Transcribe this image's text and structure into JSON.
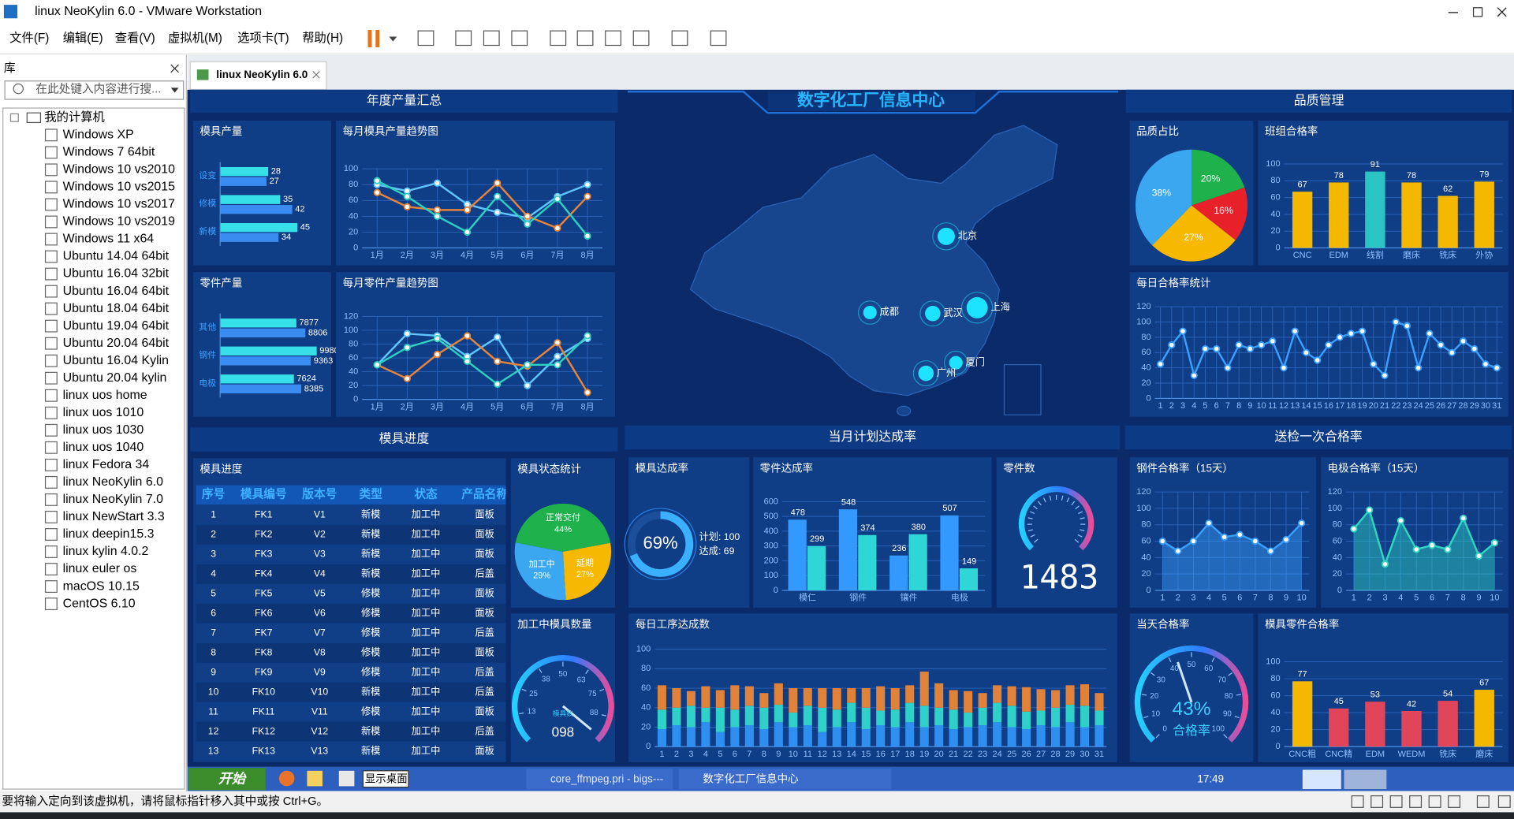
{
  "window": {
    "title": "linux NeoKylin 6.0 - VMware Workstation",
    "menu": [
      "文件(F)",
      "编辑(E)",
      "查看(V)",
      "虚拟机(M)",
      "选项卡(T)",
      "帮助(H)"
    ]
  },
  "library": {
    "title": "库",
    "search": "在此处键入内容进行搜...",
    "root": "我的计算机",
    "items": [
      "Windows XP",
      "Windows 7 64bit",
      "Windows 10 vs2010",
      "Windows 10 vs2015",
      "Windows 10 vs2017",
      "Windows 10 vs2019",
      "Windows 11 x64",
      "Ubuntu 14.04 64bit",
      "Ubuntu 16.04 32bit",
      "Ubuntu 16.04 64bit",
      "Ubuntu 18.04 64bit",
      "Ubuntu 19.04 64bit",
      "Ubuntu 20.04 64bit",
      "Ubuntu 16.04 Kylin",
      "Ubuntu 20.04 kylin",
      "linux uos home",
      "linux uos 1010",
      "linux uos 1030",
      "linux uos 1040",
      "linux Fedora 34",
      "linux NeoKylin 6.0",
      "linux NeoKylin 7.0",
      "linux NewStart 3.3",
      "linux deepin15.3",
      "linux kylin 4.0.2",
      "linux euler os",
      "macOS 10.15",
      "CentOS 6.10"
    ]
  },
  "tab": "linux NeoKylin 6.0",
  "dashboard": {
    "title": "数字化工厂信息中心",
    "sections": [
      "年度产量汇总",
      "品质管理",
      "模具进度",
      "当月计划达成率",
      "送检一次合格率"
    ],
    "map": {
      "cities": [
        "北京",
        "成都",
        "武汉",
        "上海",
        "厦门",
        "广州"
      ]
    },
    "table": {
      "title": "模具进度",
      "columns": [
        "序号",
        "模具编号",
        "版本号",
        "类型",
        "状态",
        "产品名称"
      ],
      "rows": [
        [
          "1",
          "FK1",
          "V1",
          "新模",
          "加工中",
          "面板"
        ],
        [
          "2",
          "FK2",
          "V2",
          "新模",
          "加工中",
          "面板"
        ],
        [
          "3",
          "FK3",
          "V3",
          "新模",
          "加工中",
          "面板"
        ],
        [
          "4",
          "FK4",
          "V4",
          "新模",
          "加工中",
          "后盖"
        ],
        [
          "5",
          "FK5",
          "V5",
          "修模",
          "加工中",
          "面板"
        ],
        [
          "6",
          "FK6",
          "V6",
          "修模",
          "加工中",
          "面板"
        ],
        [
          "7",
          "FK7",
          "V7",
          "修模",
          "加工中",
          "后盖"
        ],
        [
          "8",
          "FK8",
          "V8",
          "修模",
          "加工中",
          "面板"
        ],
        [
          "9",
          "FK9",
          "V9",
          "修模",
          "加工中",
          "后盖"
        ],
        [
          "10",
          "FK10",
          "V10",
          "新模",
          "加工中",
          "后盖"
        ],
        [
          "11",
          "FK11",
          "V11",
          "修模",
          "加工中",
          "面板"
        ],
        [
          "12",
          "FK12",
          "V12",
          "新模",
          "加工中",
          "后盖"
        ],
        [
          "13",
          "FK13",
          "V13",
          "新模",
          "加工中",
          "面板"
        ]
      ]
    }
  },
  "chart_data": [
    {
      "type": "bar",
      "orientation": "horizontal",
      "title": "模具产量",
      "categories": [
        "设变",
        "修模",
        "新模"
      ],
      "data_labels": true,
      "series": [
        {
          "color": "#37e0e8",
          "values": [
            28,
            35,
            45
          ]
        },
        {
          "color": "#3a8cf0",
          "values": [
            27,
            42,
            34
          ]
        }
      ]
    },
    {
      "type": "line",
      "title": "每月模具产量趋势图",
      "categories": [
        "1月",
        "2月",
        "3月",
        "4月",
        "5月",
        "6月",
        "7月",
        "8月"
      ],
      "ylim": [
        0,
        100
      ],
      "yticks": [
        0,
        20,
        40,
        60,
        80,
        100
      ],
      "grid": true,
      "series": [
        {
          "color": "#5fc6ff",
          "values": [
            80,
            72,
            82,
            55,
            45,
            38,
            65,
            80
          ]
        },
        {
          "color": "#e8843a",
          "values": [
            70,
            52,
            48,
            48,
            82,
            40,
            25,
            65
          ]
        },
        {
          "color": "#2fd0c0",
          "values": [
            85,
            65,
            40,
            20,
            65,
            30,
            62,
            15
          ]
        }
      ]
    },
    {
      "type": "bar",
      "orientation": "horizontal",
      "title": "零件产量",
      "categories": [
        "其他",
        "钢件",
        "电极"
      ],
      "data_labels": true,
      "series": [
        {
          "color": "#37e0e8",
          "values": [
            7877,
            9980,
            7624
          ]
        },
        {
          "color": "#3a8cf0",
          "values": [
            8806,
            9363,
            8385
          ]
        }
      ]
    },
    {
      "type": "line",
      "title": "每月零件产量趋势图",
      "categories": [
        "1月",
        "2月",
        "3月",
        "4月",
        "5月",
        "6月",
        "7月",
        "8月"
      ],
      "ylim": [
        0,
        120
      ],
      "yticks": [
        0,
        20,
        40,
        60,
        80,
        100,
        120
      ],
      "grid": true,
      "series": [
        {
          "color": "#5fc6ff",
          "values": [
            50,
            95,
            92,
            62,
            90,
            20,
            62,
            88
          ]
        },
        {
          "color": "#e8843a",
          "values": [
            50,
            30,
            65,
            92,
            55,
            48,
            82,
            10
          ]
        },
        {
          "color": "#2fd0c0",
          "values": [
            50,
            75,
            88,
            55,
            22,
            50,
            50,
            92
          ]
        }
      ]
    },
    {
      "type": "pie",
      "title": "品质占比",
      "values": [
        20,
        16,
        27,
        38
      ],
      "value_labels": [
        "20%",
        "16%",
        "27%",
        "38%"
      ],
      "colors": [
        "#1fb14c",
        "#e8202a",
        "#f6b800",
        "#3aa7f0"
      ]
    },
    {
      "type": "bar",
      "title": "班组合格率",
      "categories": [
        "CNC",
        "EDM",
        "线割",
        "磨床",
        "铣床",
        "外协"
      ],
      "values": [
        67,
        78,
        91,
        78,
        62,
        79
      ],
      "colors": [
        "#f5b800",
        "#f5b800",
        "#2bc4c4",
        "#f5b800",
        "#f5b800",
        "#f5b800"
      ],
      "ylim": [
        0,
        100
      ],
      "yticks": [
        0,
        20,
        40,
        60,
        80,
        100
      ],
      "grid": true,
      "data_labels": true
    },
    {
      "type": "line",
      "title": "每日合格率统计",
      "categories": [
        "1",
        "2",
        "3",
        "4",
        "5",
        "6",
        "7",
        "8",
        "9",
        "10",
        "11",
        "12",
        "13",
        "14",
        "15",
        "16",
        "17",
        "18",
        "19",
        "20",
        "21",
        "22",
        "23",
        "24",
        "25",
        "26",
        "27",
        "28",
        "29",
        "30",
        "31"
      ],
      "ylim": [
        0,
        120
      ],
      "yticks": [
        0,
        20,
        40,
        60,
        80,
        100,
        120
      ],
      "grid": true,
      "series": [
        {
          "color": "#3aa0ff",
          "values": [
            45,
            70,
            88,
            30,
            65,
            65,
            40,
            70,
            65,
            70,
            75,
            40,
            88,
            60,
            50,
            70,
            80,
            85,
            88,
            45,
            30,
            100,
            95,
            40,
            85,
            70,
            60,
            75,
            65,
            45,
            40
          ]
        }
      ]
    },
    {
      "type": "pie",
      "title": "模具状态统计",
      "categories": [
        "正常交付",
        "延期",
        "加工中"
      ],
      "values": [
        44,
        27,
        29
      ],
      "value_labels": [
        "44%",
        "27%",
        "29%"
      ],
      "colors": [
        "#1fb14c",
        "#f6b800",
        "#3aa7f0"
      ]
    },
    {
      "type": "gauge",
      "title": "加工中模具数量",
      "ylim": [
        0,
        100
      ],
      "yticks": [
        13,
        25,
        38,
        50,
        63,
        75,
        88
      ],
      "value": 98,
      "value_label": "098",
      "label": "模具数"
    },
    {
      "type": "donut",
      "title": "模具达成率",
      "ylim": [
        0,
        100
      ],
      "value": 69,
      "value_label": "69%",
      "notes": [
        "计划: 100",
        "达成: 69"
      ]
    },
    {
      "type": "bar",
      "title": "零件达成率",
      "categories": [
        "模仁",
        "钢件",
        "镶件",
        "电极"
      ],
      "ylim": [
        0,
        600
      ],
      "yticks": [
        0,
        100,
        200,
        300,
        400,
        500,
        600
      ],
      "grid": true,
      "data_labels": true,
      "series": [
        {
          "color": "#3399ff",
          "values": [
            478,
            548,
            236,
            507
          ]
        },
        {
          "color": "#2fd6d6",
          "values": [
            299,
            374,
            380,
            149
          ]
        }
      ]
    },
    {
      "type": "gauge",
      "title": "零件数",
      "value": 1483
    },
    {
      "type": "bar",
      "stacked": true,
      "title": "每日工序达成数",
      "categories": [
        "1",
        "2",
        "3",
        "4",
        "5",
        "6",
        "7",
        "8",
        "9",
        "10",
        "11",
        "12",
        "13",
        "14",
        "15",
        "16",
        "17",
        "18",
        "19",
        "20",
        "21",
        "22",
        "23",
        "24",
        "25",
        "26",
        "27",
        "28",
        "29",
        "30",
        "31"
      ],
      "ylim": [
        0,
        100
      ],
      "yticks": [
        0,
        20,
        40,
        60,
        80,
        100
      ],
      "grid": true,
      "series": [
        {
          "color": "#2f8ff0",
          "values": [
            18,
            22,
            20,
            25,
            15,
            20,
            22,
            18,
            25,
            20,
            22,
            15,
            20,
            25,
            18,
            22,
            20,
            25,
            20,
            22,
            18,
            20,
            22,
            25,
            20,
            18,
            22,
            20,
            25,
            20,
            22
          ]
        },
        {
          "color": "#2fd0c8",
          "values": [
            20,
            18,
            22,
            15,
            25,
            18,
            20,
            22,
            18,
            15,
            20,
            25,
            18,
            20,
            22,
            15,
            18,
            20,
            22,
            18,
            20,
            15,
            18,
            20,
            22,
            18,
            15,
            20,
            18,
            22,
            15
          ]
        },
        {
          "color": "#e0823a",
          "values": [
            25,
            20,
            15,
            22,
            18,
            25,
            20,
            15,
            22,
            25,
            18,
            20,
            22,
            15,
            20,
            25,
            22,
            18,
            35,
            25,
            20,
            22,
            15,
            18,
            20,
            25,
            22,
            18,
            20,
            22,
            18
          ]
        }
      ]
    },
    {
      "type": "area",
      "title": "钢件合格率（15天）",
      "categories": [
        "1",
        "2",
        "3",
        "4",
        "5",
        "6",
        "7",
        "8",
        "9",
        "10"
      ],
      "ylim": [
        0,
        120
      ],
      "yticks": [
        0,
        20,
        40,
        60,
        80,
        100,
        120
      ],
      "grid": true,
      "series": [
        {
          "color": "#3aa0ff",
          "values": [
            60,
            48,
            60,
            82,
            65,
            68,
            60,
            48,
            62,
            82
          ]
        }
      ]
    },
    {
      "type": "area",
      "title": "电极合格率（15天）",
      "categories": [
        "1",
        "2",
        "3",
        "4",
        "5",
        "6",
        "7",
        "8",
        "9",
        "10"
      ],
      "ylim": [
        0,
        120
      ],
      "yticks": [
        0,
        20,
        40,
        60,
        80,
        100,
        120
      ],
      "grid": true,
      "series": [
        {
          "color": "#2fd6c0",
          "values": [
            75,
            98,
            32,
            85,
            50,
            55,
            50,
            88,
            42,
            58
          ]
        }
      ]
    },
    {
      "type": "gauge",
      "title": "当天合格率",
      "ylim": [
        0,
        100
      ],
      "yticks": [
        0,
        10,
        20,
        30,
        40,
        50,
        60,
        70,
        80,
        90,
        100
      ],
      "value": 43,
      "value_label": "43%",
      "label": "合格率"
    },
    {
      "type": "bar",
      "title": "模具零件合格率",
      "categories": [
        "CNC粗",
        "CNC精",
        "EDM",
        "WEDM",
        "铣床",
        "磨床"
      ],
      "values": [
        77,
        45,
        53,
        42,
        54,
        67
      ],
      "colors": [
        "#f5b800",
        "#e0455a",
        "#e0455a",
        "#e0455a",
        "#e0455a",
        "#f5b800"
      ],
      "ylim": [
        0,
        100
      ],
      "yticks": [
        0,
        20,
        40,
        60,
        80,
        100
      ],
      "grid": true,
      "data_labels": true
    }
  ],
  "taskbar": {
    "start": "开始",
    "items": [
      "显示桌面",
      "core_ffmpeg.pri - bigs---",
      "数字化工厂信息中心"
    ],
    "clock": "17:49"
  },
  "status": "要将输入定向到该虚拟机，请将鼠标指针移入其中或按 Ctrl+G。"
}
